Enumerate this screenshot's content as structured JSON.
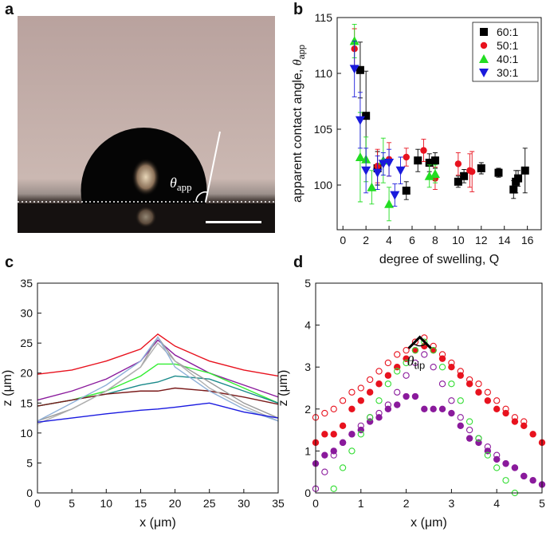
{
  "photo": {
    "panel_label": "a",
    "annotation": {
      "symbol": "θ",
      "subscript": "app"
    }
  },
  "chart_data": [
    {
      "type": "scatter",
      "panel_label": "b",
      "xlabel": "degree of swelling, Q",
      "ylabel": "apparent contact angle, ",
      "ylabel_symbol": "θ",
      "ylabel_subscript": "app",
      "xlim": [
        -0.5,
        17.2
      ],
      "ylim": [
        96,
        115
      ],
      "xticks": [
        0,
        2,
        4,
        6,
        8,
        10,
        12,
        14,
        16
      ],
      "yticks": [
        100,
        105,
        110,
        115
      ],
      "legend": "upper right",
      "series": [
        {
          "name": "60:1",
          "color": "#000000",
          "marker": "square",
          "x": [
            1.5,
            2,
            3,
            5.5,
            6.5,
            7.5,
            8,
            10,
            10.5,
            12,
            13.5,
            14.8,
            15,
            15.2,
            15.8
          ],
          "values": [
            110.3,
            106.2,
            101.5,
            99.5,
            102.2,
            102,
            102.2,
            100.3,
            100.8,
            101.5,
            101.1,
            99.6,
            100.3,
            100.6,
            101.3
          ],
          "errors": [
            2.5,
            4,
            1.5,
            0.8,
            1,
            0.8,
            0.7,
            0.5,
            0.6,
            0.5,
            0.4,
            0.8,
            1,
            0.7,
            2
          ]
        },
        {
          "name": "50:1",
          "color": "#e8121e",
          "marker": "circle",
          "x": [
            1,
            3,
            4,
            5.5,
            7,
            8,
            10,
            11,
            11.2
          ],
          "values": [
            112.2,
            101.7,
            102.3,
            102.5,
            103.1,
            100.6,
            101.9,
            101.3,
            101.2
          ],
          "errors": [
            1.8,
            1.5,
            1.5,
            0.8,
            1,
            1,
            1,
            1.5,
            1.8
          ]
        },
        {
          "name": "40:1",
          "color": "#22dd22",
          "marker": "triangle",
          "x": [
            1,
            1.5,
            2,
            2.5,
            3.5,
            4,
            7.5,
            8
          ],
          "values": [
            112.9,
            102.5,
            102.3,
            99.8,
            102.2,
            98.3,
            100.8,
            101
          ],
          "errors": [
            1.5,
            4,
            2,
            1.5,
            2,
            1.5,
            1,
            0.8
          ]
        },
        {
          "name": "30:1",
          "color": "#1a1adc",
          "marker": "triangle-down",
          "x": [
            1,
            1.5,
            2,
            3,
            3.5,
            4,
            4.5,
            5
          ],
          "values": [
            110.4,
            105.8,
            101.3,
            101.1,
            101.9,
            102,
            99.1,
            101.3
          ],
          "errors": [
            2.5,
            2.5,
            2,
            1.5,
            1,
            1.2,
            1,
            1.2
          ]
        }
      ]
    },
    {
      "type": "line",
      "panel_label": "c",
      "xlabel": "x (μm)",
      "ylabel": "z (μm)",
      "xlim": [
        0,
        35
      ],
      "ylim": [
        0,
        35
      ],
      "xticks": [
        0,
        5,
        10,
        15,
        20,
        25,
        30,
        35
      ],
      "yticks": [
        0,
        5,
        10,
        15,
        20,
        25,
        30,
        35
      ],
      "x": [
        0,
        5,
        10,
        15,
        17.5,
        20,
        25,
        30,
        35
      ],
      "series": [
        {
          "color": "#e8121e",
          "values": [
            19.8,
            20.5,
            22,
            24,
            26.5,
            24.5,
            22,
            20.5,
            19.5
          ]
        },
        {
          "color": "#8a1a9c",
          "values": [
            15.5,
            17,
            19,
            22,
            25.5,
            23,
            20,
            18,
            16
          ]
        },
        {
          "color": "#33ee33",
          "values": [
            14.5,
            15.5,
            17,
            19.5,
            21.5,
            21.5,
            20,
            17.5,
            15
          ]
        },
        {
          "color": "#1a8a8a",
          "values": [
            14.5,
            15.5,
            16.5,
            18,
            18.5,
            19.5,
            19,
            17,
            15
          ]
        },
        {
          "color": "#7a1a1a",
          "values": [
            14.5,
            15.5,
            16.5,
            17,
            17,
            17.5,
            17,
            16,
            14.8
          ]
        },
        {
          "color": "#999999",
          "values": [
            12,
            14,
            17,
            21,
            26,
            22,
            18.5,
            15,
            12.5
          ]
        },
        {
          "color": "#b0b0b0",
          "values": [
            11.5,
            14,
            17,
            21,
            25,
            22,
            17.5,
            14.5,
            12
          ]
        },
        {
          "color": "#8fb0d8",
          "values": [
            12,
            15,
            18,
            22,
            26,
            21,
            17,
            14,
            12
          ]
        },
        {
          "color": "#1a1ae0",
          "values": [
            11.8,
            12.5,
            13.2,
            13.8,
            14,
            14.3,
            15,
            13.5,
            12.5
          ]
        }
      ]
    },
    {
      "type": "scatter",
      "panel_label": "d",
      "xlabel": "x (μm)",
      "ylabel": "z (μm)",
      "annotation": {
        "symbol": "θ",
        "subscript": "tip"
      },
      "xlim": [
        0,
        5
      ],
      "ylim": [
        0,
        5
      ],
      "xticks": [
        0,
        1,
        2,
        3,
        4,
        5
      ],
      "yticks": [
        0,
        1,
        2,
        3,
        4,
        5
      ],
      "x": [
        0,
        0.2,
        0.4,
        0.6,
        0.8,
        1,
        1.2,
        1.4,
        1.6,
        1.8,
        2,
        2.2,
        2.4,
        2.6,
        2.8,
        3,
        3.2,
        3.4,
        3.6,
        3.8,
        4,
        4.2,
        4.4,
        4.6,
        4.8,
        5
      ],
      "series": [
        {
          "color": "#e8121e",
          "marker": "circle",
          "marker_fill": "open",
          "values": [
            1.8,
            1.9,
            2.0,
            2.2,
            2.4,
            2.5,
            2.7,
            2.9,
            3.1,
            3.3,
            3.4,
            3.6,
            3.7,
            3.5,
            3.3,
            3.1,
            2.9,
            2.7,
            2.6,
            2.4,
            2.2,
            2.0,
            1.8,
            1.7,
            null,
            null
          ]
        },
        {
          "color": "#e8121e",
          "marker": "circle",
          "marker_fill": "filled",
          "values": [
            1.2,
            1.4,
            1.4,
            1.6,
            2.0,
            2.2,
            2.4,
            2.6,
            2.8,
            3.0,
            3.2,
            3.4,
            3.5,
            3.4,
            3.2,
            3.0,
            2.8,
            2.6,
            2.4,
            2.2,
            2.0,
            1.9,
            1.7,
            1.6,
            1.4,
            1.2
          ]
        },
        {
          "color": "#8a1a9c",
          "marker": "circle",
          "marker_fill": "open",
          "values": [
            0.1,
            0.5,
            0.9,
            1.2,
            1.4,
            1.6,
            1.8,
            1.9,
            2.1,
            2.4,
            2.8,
            3.1,
            3.3,
            3.0,
            2.6,
            2.2,
            1.8,
            1.5,
            1.3,
            1.1,
            0.9,
            0.7,
            0.6,
            0.4,
            null,
            null
          ]
        },
        {
          "color": "#8a1a9c",
          "marker": "circle",
          "marker_fill": "filled",
          "values": [
            0.7,
            0.9,
            1.0,
            1.2,
            1.4,
            1.5,
            1.7,
            1.8,
            2.0,
            2.1,
            2.3,
            2.3,
            2.0,
            2.0,
            2.0,
            1.9,
            1.6,
            1.3,
            1.2,
            1.0,
            0.8,
            0.7,
            0.6,
            0.4,
            0.3,
            0.2
          ]
        },
        {
          "color": "#33dd33",
          "marker": "circle",
          "marker_fill": "open",
          "values": [
            null,
            null,
            0.1,
            0.6,
            1.0,
            1.4,
            1.8,
            2.2,
            2.6,
            2.9,
            3.1,
            3.4,
            3.6,
            3.4,
            3.0,
            2.6,
            2.2,
            1.7,
            1.3,
            0.9,
            0.6,
            0.3,
            0.0,
            null,
            null,
            null
          ]
        }
      ]
    }
  ]
}
